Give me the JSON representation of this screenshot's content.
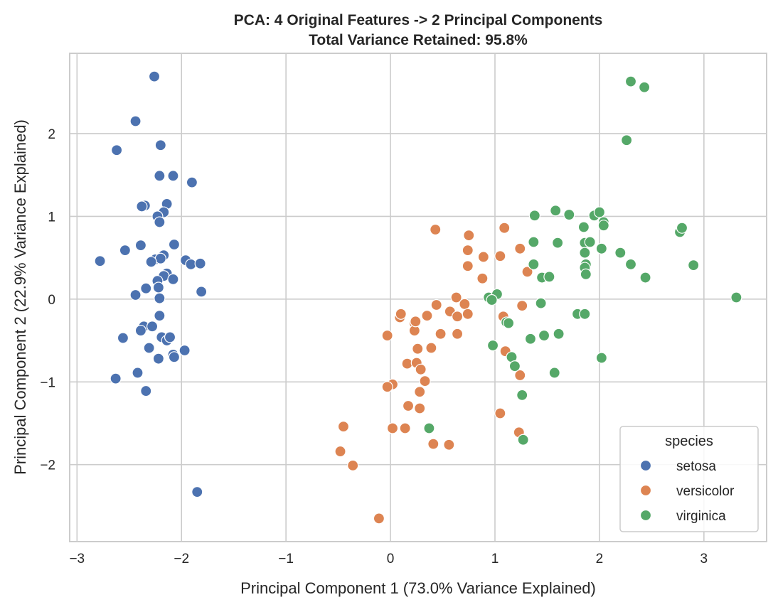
{
  "chart_data": {
    "type": "scatter",
    "title": "PCA: 4 Original Features -> 2 Principal Components",
    "subtitle": "Total Variance Retained: 95.8%",
    "xlabel": "Principal Component 1 (73.0% Variance Explained)",
    "ylabel": "Principal Component 2 (22.9% Variance Explained)",
    "xlim": [
      -3.07,
      3.6
    ],
    "ylim": [
      -2.93,
      2.97
    ],
    "xticks": [
      -3,
      -2,
      -1,
      0,
      1,
      2,
      3
    ],
    "yticks": [
      -2,
      -1,
      0,
      1,
      2
    ],
    "grid": true,
    "legend": {
      "title": "species",
      "position": "lower right"
    },
    "series": [
      {
        "name": "setosa",
        "color": "#4c72b0",
        "points": [
          [
            -2.26,
            2.69
          ],
          [
            -2.44,
            2.15
          ],
          [
            -2.62,
            1.8
          ],
          [
            -2.2,
            1.86
          ],
          [
            -2.21,
            1.49
          ],
          [
            -2.08,
            1.49
          ],
          [
            -1.9,
            1.41
          ],
          [
            -2.14,
            1.15
          ],
          [
            -2.35,
            1.13
          ],
          [
            -2.38,
            1.12
          ],
          [
            -2.17,
            1.05
          ],
          [
            -2.23,
            1.0
          ],
          [
            -2.21,
            0.93
          ],
          [
            -2.07,
            0.66
          ],
          [
            -2.39,
            0.65
          ],
          [
            -2.54,
            0.59
          ],
          [
            -2.17,
            0.53
          ],
          [
            -2.25,
            0.48
          ],
          [
            -2.2,
            0.49
          ],
          [
            -2.29,
            0.45
          ],
          [
            -1.96,
            0.47
          ],
          [
            -1.91,
            0.42
          ],
          [
            -1.82,
            0.43
          ],
          [
            -2.78,
            0.46
          ],
          [
            -2.14,
            0.31
          ],
          [
            -2.17,
            0.28
          ],
          [
            -2.23,
            0.22
          ],
          [
            -2.08,
            0.24
          ],
          [
            -2.22,
            0.14
          ],
          [
            -2.34,
            0.13
          ],
          [
            -2.44,
            0.05
          ],
          [
            -2.21,
            0.01
          ],
          [
            -1.81,
            0.09
          ],
          [
            -2.21,
            -0.2
          ],
          [
            -2.36,
            -0.33
          ],
          [
            -2.28,
            -0.33
          ],
          [
            -2.39,
            -0.38
          ],
          [
            -2.19,
            -0.46
          ],
          [
            -2.14,
            -0.5
          ],
          [
            -2.11,
            -0.46
          ],
          [
            -2.56,
            -0.47
          ],
          [
            -2.31,
            -0.59
          ],
          [
            -2.08,
            -0.67
          ],
          [
            -2.07,
            -0.7
          ],
          [
            -2.22,
            -0.72
          ],
          [
            -1.97,
            -0.62
          ],
          [
            -2.63,
            -0.96
          ],
          [
            -2.42,
            -0.89
          ],
          [
            -2.34,
            -1.11
          ],
          [
            -1.85,
            -2.33
          ]
        ]
      },
      {
        "name": "versicolor",
        "color": "#dd8452",
        "points": [
          [
            0.43,
            0.84
          ],
          [
            1.09,
            0.86
          ],
          [
            0.75,
            0.77
          ],
          [
            0.74,
            0.59
          ],
          [
            0.89,
            0.51
          ],
          [
            1.05,
            0.52
          ],
          [
            1.24,
            0.61
          ],
          [
            0.74,
            0.4
          ],
          [
            0.88,
            0.25
          ],
          [
            1.31,
            0.33
          ],
          [
            0.63,
            0.02
          ],
          [
            0.71,
            -0.06
          ],
          [
            0.44,
            -0.07
          ],
          [
            0.57,
            -0.15
          ],
          [
            0.64,
            -0.21
          ],
          [
            0.74,
            -0.18
          ],
          [
            0.35,
            -0.2
          ],
          [
            0.09,
            -0.22
          ],
          [
            0.1,
            -0.18
          ],
          [
            0.23,
            -0.29
          ],
          [
            0.23,
            -0.38
          ],
          [
            0.48,
            -0.42
          ],
          [
            0.64,
            -0.42
          ],
          [
            1.08,
            -0.21
          ],
          [
            1.26,
            -0.08
          ],
          [
            -0.03,
            -0.44
          ],
          [
            0.39,
            -0.59
          ],
          [
            0.26,
            -0.6
          ],
          [
            0.16,
            -0.78
          ],
          [
            0.25,
            -0.77
          ],
          [
            0.29,
            -0.85
          ],
          [
            1.24,
            -0.92
          ],
          [
            1.1,
            -0.63
          ],
          [
            0.33,
            -0.99
          ],
          [
            0.02,
            -1.03
          ],
          [
            -0.03,
            -1.06
          ],
          [
            0.28,
            -1.12
          ],
          [
            0.17,
            -1.29
          ],
          [
            0.28,
            -1.32
          ],
          [
            1.05,
            -1.38
          ],
          [
            0.14,
            -1.56
          ],
          [
            0.02,
            -1.56
          ],
          [
            -0.45,
            -1.54
          ],
          [
            1.23,
            -1.61
          ],
          [
            0.41,
            -1.75
          ],
          [
            0.56,
            -1.76
          ],
          [
            -0.48,
            -1.84
          ],
          [
            -0.36,
            -2.01
          ],
          [
            -0.11,
            -2.65
          ],
          [
            0.24,
            -0.27
          ]
        ]
      },
      {
        "name": "virginica",
        "color": "#55a868",
        "points": [
          [
            2.3,
            2.63
          ],
          [
            2.43,
            2.56
          ],
          [
            2.26,
            1.92
          ],
          [
            1.58,
            1.07
          ],
          [
            1.38,
            1.01
          ],
          [
            1.71,
            1.02
          ],
          [
            1.95,
            1.01
          ],
          [
            2.0,
            1.05
          ],
          [
            2.04,
            0.93
          ],
          [
            2.04,
            0.89
          ],
          [
            1.85,
            0.87
          ],
          [
            2.77,
            0.81
          ],
          [
            2.79,
            0.86
          ],
          [
            1.37,
            0.69
          ],
          [
            1.6,
            0.68
          ],
          [
            1.86,
            0.68
          ],
          [
            1.91,
            0.69
          ],
          [
            2.02,
            0.61
          ],
          [
            1.86,
            0.56
          ],
          [
            2.2,
            0.56
          ],
          [
            1.37,
            0.42
          ],
          [
            2.3,
            0.42
          ],
          [
            2.9,
            0.41
          ],
          [
            1.87,
            0.42
          ],
          [
            1.86,
            0.38
          ],
          [
            1.87,
            0.3
          ],
          [
            1.45,
            0.26
          ],
          [
            1.52,
            0.27
          ],
          [
            2.44,
            0.26
          ],
          [
            0.94,
            0.02
          ],
          [
            1.02,
            0.06
          ],
          [
            0.97,
            -0.01
          ],
          [
            1.44,
            -0.05
          ],
          [
            3.31,
            0.02
          ],
          [
            1.79,
            -0.18
          ],
          [
            1.86,
            -0.18
          ],
          [
            1.11,
            -0.28
          ],
          [
            1.13,
            -0.29
          ],
          [
            1.61,
            -0.42
          ],
          [
            1.47,
            -0.44
          ],
          [
            1.34,
            -0.48
          ],
          [
            0.98,
            -0.56
          ],
          [
            1.16,
            -0.7
          ],
          [
            2.02,
            -0.71
          ],
          [
            1.19,
            -0.81
          ],
          [
            1.57,
            -0.89
          ],
          [
            1.26,
            -1.16
          ],
          [
            0.37,
            -1.56
          ],
          [
            1.27,
            -1.7
          ],
          [
            1.86,
            -0.18
          ]
        ]
      }
    ]
  }
}
